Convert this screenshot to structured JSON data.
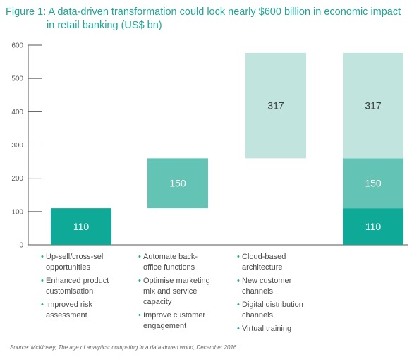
{
  "title_line1": "Figure 1: A data-driven transformation could lock nearly $600 billion in economic impact",
  "title_line2": "in retail banking (US$ bn)",
  "colors": {
    "dark": "#0fa997",
    "mid": "#63c3b5",
    "light": "#c1e5de",
    "accent": "#1fa695"
  },
  "chart_data": {
    "type": "bar",
    "subtype": "waterfall",
    "ylim": [
      0,
      600
    ],
    "yticks": [
      0,
      100,
      200,
      300,
      400,
      500,
      600
    ],
    "grid": false,
    "bars": [
      {
        "segments": [
          {
            "start": 0,
            "value": 110,
            "label": "110",
            "color": "dark"
          }
        ]
      },
      {
        "segments": [
          {
            "start": 110,
            "value": 150,
            "label": "150",
            "color": "mid"
          }
        ]
      },
      {
        "segments": [
          {
            "start": 260,
            "value": 317,
            "label": "317",
            "color": "light"
          }
        ]
      },
      {
        "segments": [
          {
            "start": 0,
            "value": 110,
            "label": "110",
            "color": "dark"
          },
          {
            "start": 110,
            "value": 150,
            "label": "150",
            "color": "mid"
          },
          {
            "start": 260,
            "value": 317,
            "label": "317",
            "color": "light"
          }
        ]
      }
    ],
    "categories": [
      [
        "Up-sell/cross-sell opportunities",
        "Enhanced product customisation",
        "Improved risk assessment"
      ],
      [
        "Automate back-office functions",
        "Optimise marketing mix and service capacity",
        "Improve customer engagement"
      ],
      [
        "Cloud-based architecture",
        "New customer channels",
        "Digital distribution channels",
        "Virtual training"
      ],
      []
    ]
  },
  "bullet_lines": [
    [
      [
        "Up-sell/cross-sell",
        "opportunities"
      ],
      [
        "Enhanced product",
        "customisation"
      ],
      [
        "Improved risk",
        "assessment"
      ]
    ],
    [
      [
        "Automate back-",
        "office functions"
      ],
      [
        "Optimise marketing",
        "mix and service",
        "capacity"
      ],
      [
        "Improve customer",
        "engagement"
      ]
    ],
    [
      [
        "Cloud-based",
        "architecture"
      ],
      [
        "New customer",
        "channels"
      ],
      [
        "Digital distribution",
        "channels"
      ],
      [
        "Virtual training"
      ]
    ]
  ],
  "source": "Source: McKinsey, The age of analytics: competing in a data-driven world, December 2016."
}
